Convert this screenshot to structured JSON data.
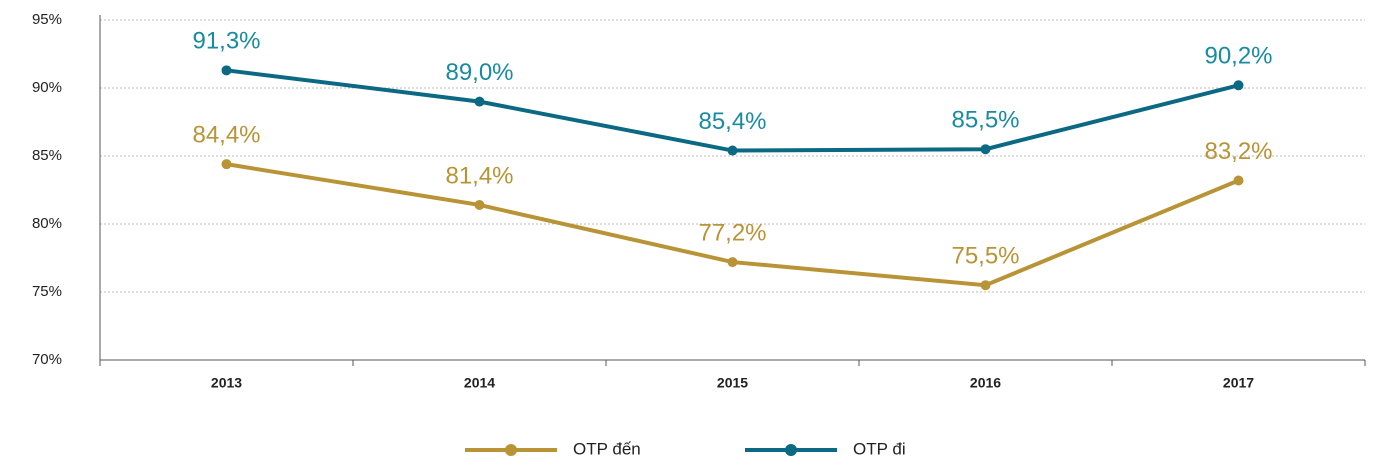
{
  "chart_data": {
    "type": "line",
    "categories": [
      "2013",
      "2014",
      "2015",
      "2016",
      "2017"
    ],
    "series": [
      {
        "name": "OTP đến",
        "color": "#b89437",
        "values": [
          84.4,
          81.4,
          77.2,
          75.5,
          83.2
        ],
        "value_labels": [
          "84,4%",
          "81,4%",
          "77,2%",
          "75,5%",
          "83,2%"
        ]
      },
      {
        "name": "OTP đi",
        "color": "#0b6983",
        "values": [
          91.3,
          89.0,
          85.4,
          85.5,
          90.2
        ],
        "value_labels": [
          "91,3%",
          "89,0%",
          "85,4%",
          "85,5%",
          "90,2%"
        ]
      }
    ],
    "value_label_colors": [
      "#b89437",
      "#1a8aa0"
    ],
    "ylim": [
      70,
      95
    ],
    "yticks": [
      {
        "value": 70,
        "label": "70%"
      },
      {
        "value": 75,
        "label": "75%"
      },
      {
        "value": 80,
        "label": "80%"
      },
      {
        "value": 85,
        "label": "85%"
      },
      {
        "value": 90,
        "label": "90%"
      },
      {
        "value": 95,
        "label": "95%"
      }
    ],
    "grid": true,
    "legend": "bottom"
  }
}
